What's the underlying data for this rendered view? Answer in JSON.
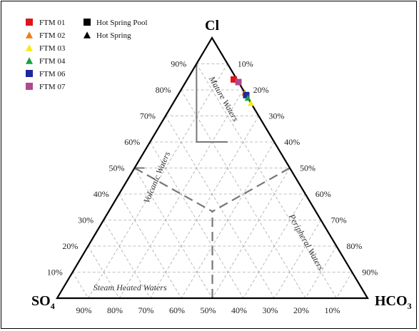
{
  "chart_data": {
    "type": "scatter",
    "subtype": "ternary",
    "vertices": {
      "top": "Cl",
      "left": "SO4",
      "right": "HCO3"
    },
    "vertex_display": {
      "top": {
        "main": "Cl",
        "sub": ""
      },
      "left": {
        "main": "SO",
        "sub": "4"
      },
      "right": {
        "main": "HCO",
        "sub": "3"
      }
    },
    "ticks": {
      "left_edge": [
        "10%",
        "20%",
        "30%",
        "40%",
        "50%",
        "60%",
        "70%",
        "80%",
        "90%"
      ],
      "right_edge": [
        "10%",
        "20%",
        "30%",
        "40%",
        "50%",
        "60%",
        "70%",
        "80%",
        "90%"
      ],
      "bottom_edge": [
        "90%",
        "80%",
        "70%",
        "60%",
        "50%",
        "40%",
        "30%",
        "20%",
        "10%"
      ]
    },
    "grid": true,
    "zones": [
      "Mature Waters",
      "Volcanic Waters",
      "Peripheral Waters",
      "Steam Heated Waters"
    ],
    "legend": [
      {
        "name": "FTM 01",
        "color": "#e0141c",
        "marker": "square"
      },
      {
        "name": "FTM 02",
        "color": "#f07c14",
        "marker": "triangle"
      },
      {
        "name": "FTM 03",
        "color": "#f6ea14",
        "marker": "triangle"
      },
      {
        "name": "FTM 04",
        "color": "#18a040",
        "marker": "triangle"
      },
      {
        "name": "FTM 06",
        "color": "#1c2a9c",
        "marker": "square"
      },
      {
        "name": "FTM 07",
        "color": "#b04890",
        "marker": "square"
      }
    ],
    "symbol_legend": [
      {
        "name": "Hot Spring Pool",
        "marker": "square"
      },
      {
        "name": "Hot Spring",
        "marker": "triangle"
      }
    ],
    "legend_position": "top-left",
    "points": [
      {
        "sample": "FTM 01",
        "marker": "square",
        "Cl": 84,
        "SO4": 1,
        "HCO3": 15
      },
      {
        "sample": "FTM 07",
        "marker": "square",
        "Cl": 83,
        "SO4": 0,
        "HCO3": 17
      },
      {
        "sample": "FTM 02",
        "marker": "triangle",
        "Cl": 79,
        "SO4": 0,
        "HCO3": 21
      },
      {
        "sample": "FTM 06",
        "marker": "square",
        "Cl": 78,
        "SO4": 0,
        "HCO3": 22
      },
      {
        "sample": "FTM 04",
        "marker": "triangle",
        "Cl": 77,
        "SO4": 0,
        "HCO3": 23
      },
      {
        "sample": "FTM 03",
        "marker": "triangle",
        "Cl": 75,
        "SO4": 0,
        "HCO3": 25
      }
    ]
  }
}
